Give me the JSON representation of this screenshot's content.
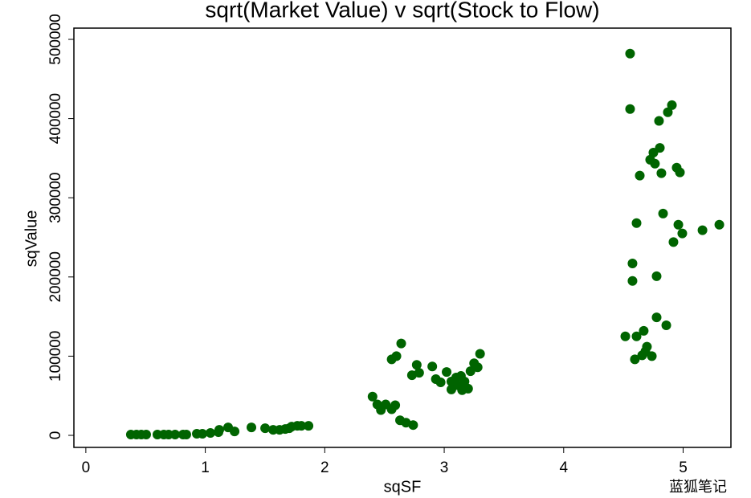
{
  "chart_data": {
    "type": "scatter",
    "title": "sqrt(Market Value) v sqrt(Stock to Flow)",
    "x_label": "sqSF",
    "y_label": "sqValue",
    "watermark": "蓝狐笔记",
    "xlim": [
      -0.1,
      5.4
    ],
    "ylim": [
      -15200,
      514200
    ],
    "xticks": [
      0,
      1,
      2,
      3,
      4,
      5
    ],
    "yticks": [
      0,
      100000,
      200000,
      300000,
      400000,
      500000
    ],
    "series": [
      {
        "color": "#006400",
        "x": [
          0.377,
          0.424,
          0.464,
          0.505,
          0.599,
          0.653,
          0.693,
          0.747,
          0.814,
          0.841,
          0.929,
          0.976,
          1.043,
          1.11,
          1.117,
          1.191,
          1.245,
          1.386,
          1.501,
          1.568,
          1.622,
          1.669,
          1.703,
          1.723,
          1.77,
          1.804,
          1.864,
          2.4,
          2.44,
          2.47,
          2.51,
          2.56,
          2.59,
          2.56,
          2.6,
          2.64,
          2.63,
          2.68,
          2.74,
          2.73,
          2.77,
          2.79,
          2.9,
          2.93,
          2.97,
          3.02,
          3.06,
          3.06,
          3.1,
          3.12,
          3.14,
          3.15,
          3.17,
          3.2,
          3.22,
          3.25,
          3.28,
          3.3,
          4.556,
          4.556,
          4.906,
          4.872,
          4.798,
          4.805,
          4.751,
          4.724,
          4.764,
          4.946,
          4.973,
          4.818,
          4.637,
          4.832,
          4.61,
          4.96,
          5.303,
          5.162,
          4.993,
          4.919,
          4.576,
          4.778,
          4.576,
          4.778,
          4.859,
          4.67,
          4.516,
          4.61,
          4.697,
          4.684,
          4.657,
          4.738,
          4.596
        ],
        "values": [
          1000,
          1000,
          1000,
          1000,
          1000,
          1000,
          1000,
          1000,
          1000,
          1000,
          2000,
          2000,
          3000,
          4000,
          7000,
          10000,
          5000,
          10000,
          9000,
          7000,
          7000,
          8000,
          9000,
          11000,
          12000,
          12000,
          12000,
          49000,
          39000,
          32000,
          39000,
          33000,
          38000,
          96000,
          100000,
          116000,
          19000,
          16000,
          13000,
          76000,
          89000,
          79000,
          87000,
          71000,
          67000,
          80000,
          68000,
          58000,
          73000,
          63000,
          75000,
          57000,
          68000,
          59000,
          81000,
          91000,
          86000,
          103000,
          482000,
          412000,
          417000,
          408000,
          397000,
          363000,
          357000,
          348000,
          343000,
          338000,
          332000,
          331000,
          328000,
          280000,
          268000,
          266000,
          266000,
          259000,
          255000,
          244000,
          217000,
          201000,
          195000,
          149000,
          139000,
          132000,
          125000,
          125000,
          112000,
          106000,
          101000,
          100000,
          96000
        ]
      }
    ]
  }
}
